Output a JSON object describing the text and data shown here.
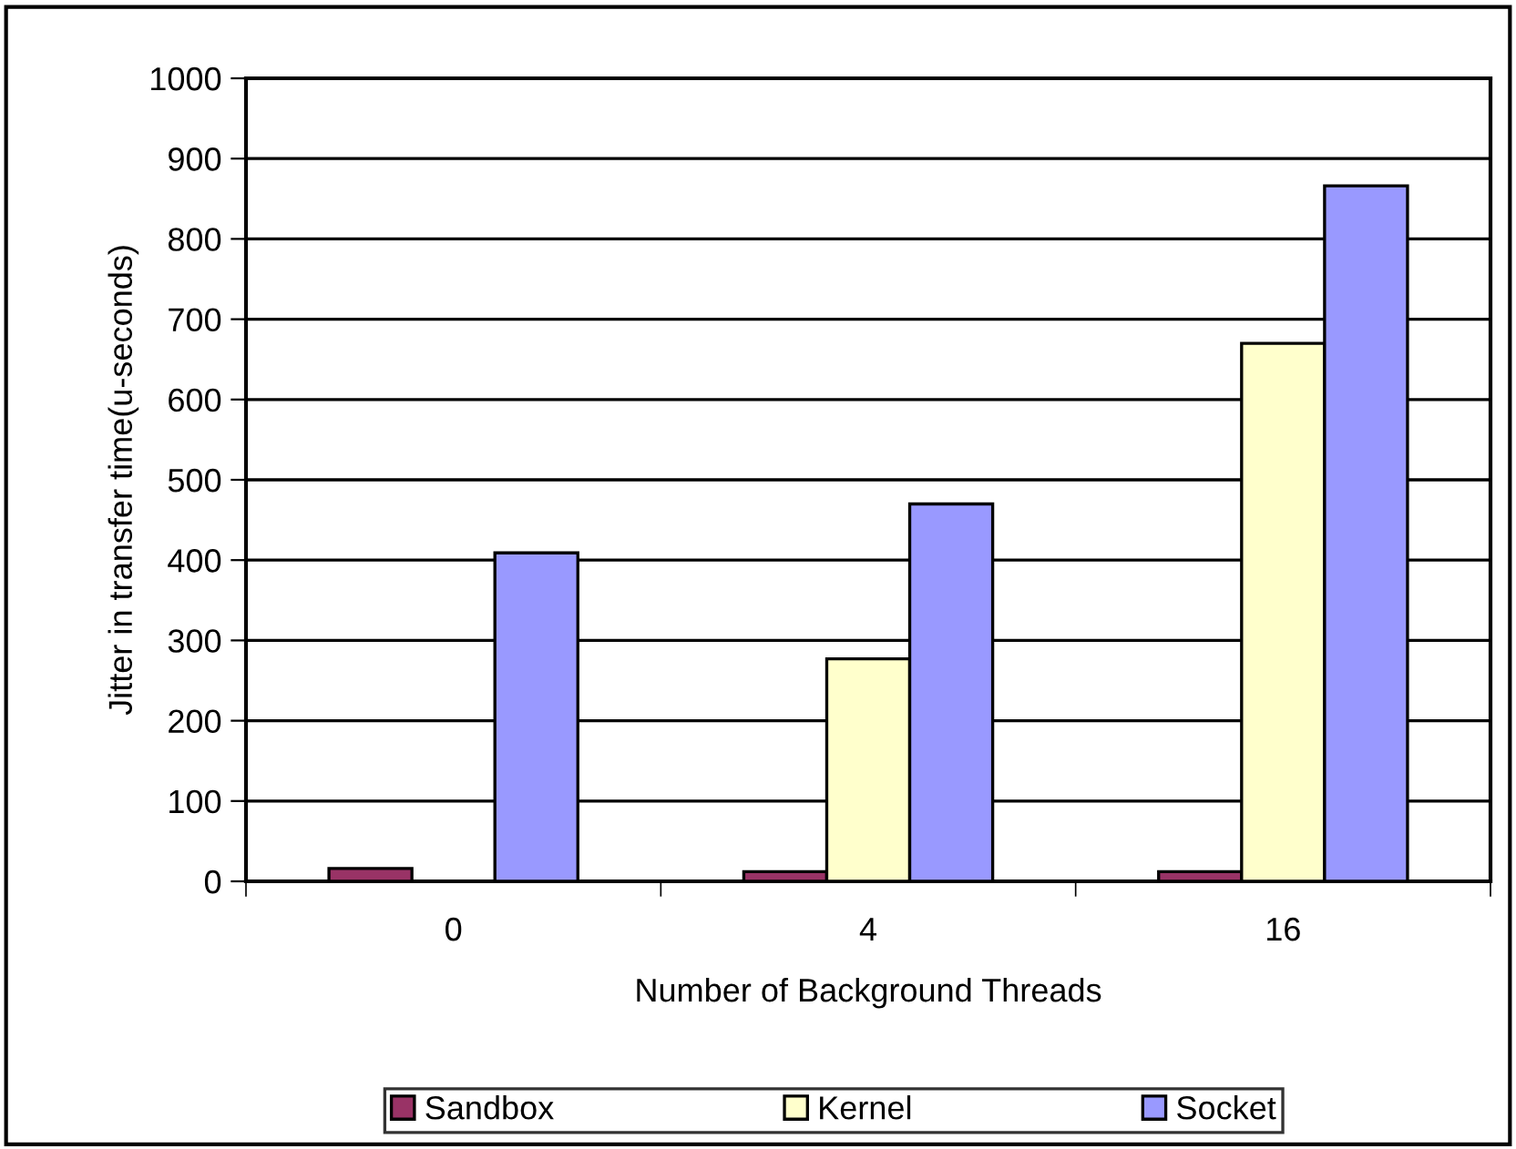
{
  "chart_data": {
    "type": "bar",
    "xlabel": "Number of Background Threads",
    "ylabel": "Jitter in transfer time(u-seconds)",
    "categories": [
      "0",
      "4",
      "16"
    ],
    "series": [
      {
        "name": "Sandbox",
        "color": "#993366",
        "values": [
          16,
          12,
          12
        ]
      },
      {
        "name": "Kernel",
        "color": "#ffffcc",
        "values": [
          null,
          277,
          670
        ]
      },
      {
        "name": "Socket",
        "color": "#9999ff",
        "values": [
          409,
          470,
          866
        ]
      }
    ],
    "ylim": [
      0,
      1000
    ],
    "yticks": [
      0,
      100,
      200,
      300,
      400,
      500,
      600,
      700,
      800,
      900,
      1000
    ],
    "grid": "y",
    "legend": "bottom"
  }
}
